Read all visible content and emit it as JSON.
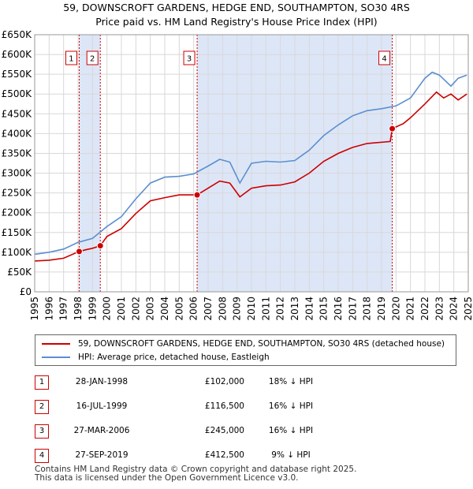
{
  "title_line1": "59, DOWNSCROFT GARDENS, HEDGE END, SOUTHAMPTON, SO30 4RS",
  "title_line2": "Price paid vs. HM Land Registry's House Price Index (HPI)",
  "colors": {
    "price_line": "#cc0000",
    "hpi_line": "#5b8fd0",
    "shade": "#dde6f7",
    "marker_border": "#cc0000",
    "grid": "#d8d8d8"
  },
  "chart_data": {
    "type": "line",
    "title": "Price paid vs. HM Land Registry's House Price Index (HPI)",
    "xlabel": "",
    "ylabel": "",
    "xlim": [
      1995,
      2025
    ],
    "ylim": [
      0,
      650000
    ],
    "x_ticks": [
      1995,
      1996,
      1997,
      1998,
      1999,
      2000,
      2001,
      2002,
      2003,
      2004,
      2005,
      2006,
      2007,
      2008,
      2009,
      2010,
      2011,
      2012,
      2013,
      2014,
      2015,
      2016,
      2017,
      2018,
      2019,
      2020,
      2021,
      2022,
      2023,
      2024,
      2025
    ],
    "x_tick_labels": [
      "1995",
      "1996",
      "1997",
      "1998",
      "1999",
      "2000",
      "2001",
      "2002",
      "2003",
      "2004",
      "2005",
      "2006",
      "2007",
      "2008",
      "2009",
      "2010",
      "2011",
      "2012",
      "2013",
      "2014",
      "2015",
      "2016",
      "2017",
      "2018",
      "2019",
      "2020",
      "2021",
      "2022",
      "2023",
      "2024",
      "2025"
    ],
    "y_ticks": [
      0,
      50000,
      100000,
      150000,
      200000,
      250000,
      300000,
      350000,
      400000,
      450000,
      500000,
      550000,
      600000,
      650000
    ],
    "y_tick_labels": [
      "£0",
      "£50K",
      "£100K",
      "£150K",
      "£200K",
      "£250K",
      "£300K",
      "£350K",
      "£400K",
      "£450K",
      "£500K",
      "£550K",
      "£600K",
      "£650K"
    ],
    "shaded_ranges": [
      [
        1998.08,
        1999.54
      ],
      [
        2006.24,
        2019.74
      ]
    ],
    "series": [
      {
        "name": "59, DOWNSCROFT GARDENS, HEDGE END, SOUTHAMPTON, SO30 4RS (detached house)",
        "color": "#cc0000",
        "x": [
          1995,
          1996,
          1997,
          1998.08,
          1998.5,
          1999.0,
          1999.54,
          2000,
          2001,
          2002,
          2003,
          2004,
          2005,
          2006.24,
          2007,
          2007.8,
          2008.5,
          2009.2,
          2010,
          2011,
          2012,
          2013,
          2014,
          2015,
          2016,
          2017,
          2018,
          2019.6,
          2019.74,
          2020.5,
          2021,
          2022,
          2022.8,
          2023.3,
          2023.8,
          2024.3,
          2024.9
        ],
        "values": [
          78000,
          80000,
          85000,
          102000,
          106000,
          110000,
          116500,
          140000,
          160000,
          198000,
          230000,
          238000,
          245000,
          245000,
          262000,
          280000,
          275000,
          240000,
          262000,
          268000,
          270000,
          278000,
          300000,
          330000,
          350000,
          365000,
          375000,
          380000,
          412500,
          425000,
          440000,
          475000,
          505000,
          490000,
          500000,
          485000,
          500000
        ]
      },
      {
        "name": "HPI: Average price, detached house, Eastleigh",
        "color": "#5b8fd0",
        "x": [
          1995,
          1996,
          1997,
          1998,
          1999,
          2000,
          2001,
          2002,
          2003,
          2004,
          2005,
          2006,
          2007,
          2007.8,
          2008.5,
          2009.2,
          2010,
          2011,
          2012,
          2013,
          2014,
          2015,
          2016,
          2017,
          2018,
          2019,
          2020,
          2021,
          2022,
          2022.5,
          2023,
          2023.8,
          2024.3,
          2024.9
        ],
        "values": [
          95000,
          100000,
          108000,
          125000,
          135000,
          165000,
          190000,
          235000,
          275000,
          290000,
          292000,
          298000,
          318000,
          335000,
          328000,
          275000,
          325000,
          330000,
          328000,
          332000,
          358000,
          395000,
          422000,
          445000,
          458000,
          463000,
          470000,
          490000,
          540000,
          555000,
          548000,
          520000,
          540000,
          548000
        ]
      }
    ],
    "markers": [
      {
        "label": "1",
        "x": 1998.08,
        "value": 102000
      },
      {
        "label": "2",
        "x": 1999.54,
        "value": 116500
      },
      {
        "label": "3",
        "x": 2006.24,
        "value": 245000
      },
      {
        "label": "4",
        "x": 2019.74,
        "value": 412500
      }
    ]
  },
  "legend": {
    "price_label": "59, DOWNSCROFT GARDENS, HEDGE END, SOUTHAMPTON, SO30 4RS (detached house)",
    "hpi_label": "HPI: Average price, detached house, Eastleigh"
  },
  "sales": [
    {
      "num": "1",
      "date": "28-JAN-1998",
      "price": "£102,000",
      "hpi": "18% ↓ HPI"
    },
    {
      "num": "2",
      "date": "16-JUL-1999",
      "price": "£116,500",
      "hpi": "16% ↓ HPI"
    },
    {
      "num": "3",
      "date": "27-MAR-2006",
      "price": "£245,000",
      "hpi": "16% ↓ HPI"
    },
    {
      "num": "4",
      "date": "27-SEP-2019",
      "price": "£412,500",
      "hpi": "9% ↓ HPI"
    }
  ],
  "footer": {
    "line1": "Contains HM Land Registry data © Crown copyright and database right 2025.",
    "line2": "This data is licensed under the Open Government Licence v3.0."
  }
}
